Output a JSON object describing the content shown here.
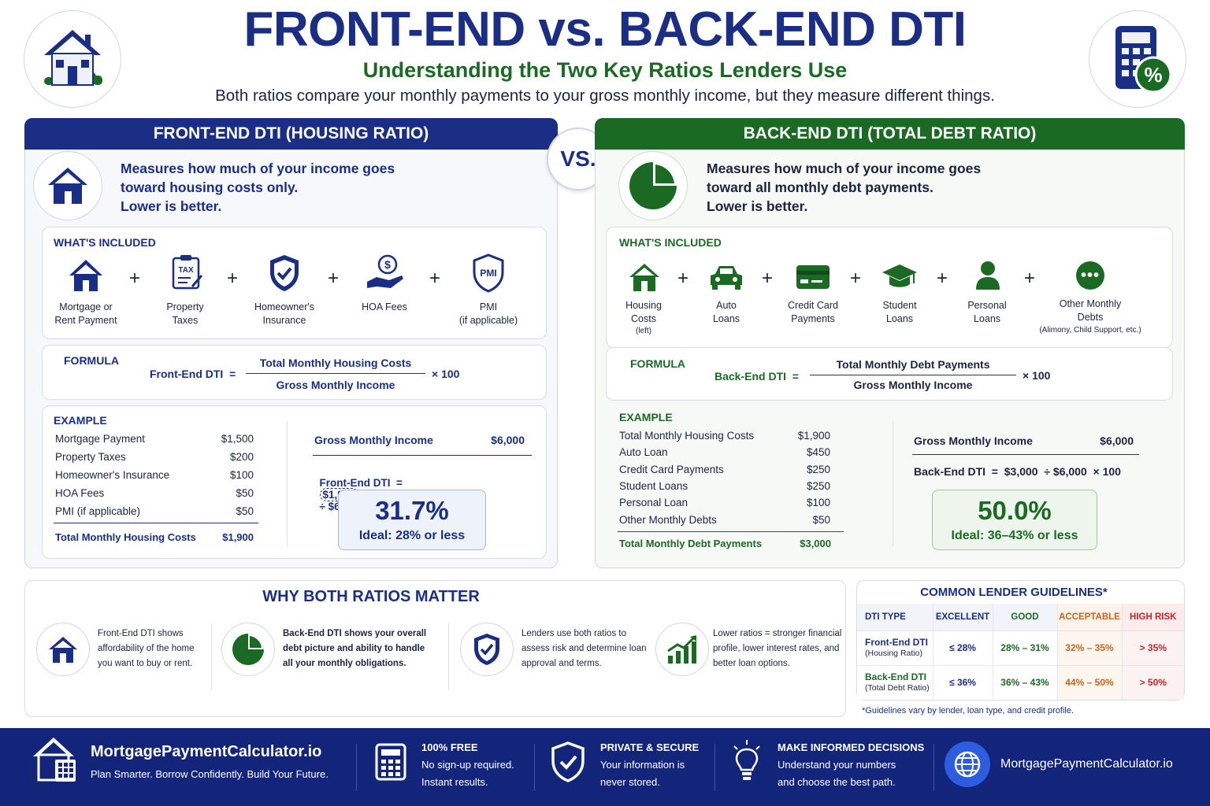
{
  "title": "FRONT-END vs. BACK-END DTI",
  "subtitle": "Understanding the Two Key Ratios Lenders Use",
  "description": "Both ratios compare your monthly payments to your gross monthly income, but they measure different things.",
  "vs": "VS.",
  "front": {
    "header": "FRONT-END DTI (HOUSING RATIO)",
    "intro": [
      "Measures how much of your income goes",
      "toward housing costs only.",
      "Lower is better."
    ],
    "included_title": "WHAT'S INCLUDED",
    "items": [
      {
        "l1": "Mortgage or",
        "l2": "Rent Payment",
        "icon": "house-icon"
      },
      {
        "l1": "Property",
        "l2": "Taxes",
        "icon": "tax-icon",
        "badge": "TAX"
      },
      {
        "l1": "Homeowner's",
        "l2": "Insurance",
        "icon": "shield-icon"
      },
      {
        "l1": "HOA Fees",
        "l2": "",
        "icon": "hand-dollar-icon"
      },
      {
        "l1": "PMI",
        "l2": "(if applicable)",
        "icon": "pmi-shield-icon",
        "badge": "PMI"
      }
    ],
    "formula_title": "FORMULA",
    "formula_lhs": "Front-End DTI  =",
    "formula_num": "Total Monthly Housing Costs",
    "formula_den": "Gross Monthly Income",
    "formula_mult": "× 100",
    "example_title": "EXAMPLE",
    "rows": [
      {
        "label": "Mortgage Payment",
        "value": "$1,500"
      },
      {
        "label": "Property Taxes",
        "value": "$200"
      },
      {
        "label": "Homeowner's Insurance",
        "value": "$100"
      },
      {
        "label": "HOA Fees",
        "value": "$50"
      },
      {
        "label": "PMI (if applicable)",
        "value": "$50"
      }
    ],
    "total_label": "Total Monthly Housing Costs",
    "total_value": "$1,900",
    "income_label": "Gross Monthly Income",
    "income_value": "$6,000",
    "calc_lhs": "Front-End DTI  =",
    "calc_num": "$1,900",
    "calc_rest": "÷ $6,000  × 100",
    "result": "31.7%",
    "ideal": "Ideal: 28% or less"
  },
  "back": {
    "header": "BACK-END DTI (TOTAL DEBT RATIO)",
    "intro": [
      "Measures how much of your income goes",
      "toward all monthly debt payments.",
      "Lower is better."
    ],
    "included_title": "WHAT'S INCLUDED",
    "items": [
      {
        "l1": "Housing",
        "l2": "Costs",
        "l3": "(left)",
        "icon": "house-icon"
      },
      {
        "l1": "Auto",
        "l2": "Loans",
        "icon": "car-icon"
      },
      {
        "l1": "Credit Card",
        "l2": "Payments",
        "icon": "credit-card-icon"
      },
      {
        "l1": "Student",
        "l2": "Loans",
        "icon": "graduation-cap-icon"
      },
      {
        "l1": "Personal",
        "l2": "Loans",
        "icon": "person-icon"
      },
      {
        "l1": "Other Monthly",
        "l2": "Debts",
        "l3": "(Alimony, Child Support, etc.)",
        "icon": "more-icon"
      }
    ],
    "formula_title": "FORMULA",
    "formula_lhs": "Back-End DTI  =",
    "formula_num": "Total Monthly Debt Payments",
    "formula_den": "Gross Monthly Income",
    "formula_mult": "× 100",
    "example_title": "EXAMPLE",
    "rows": [
      {
        "label": "Total Monthly Housing Costs",
        "value": "$1,900"
      },
      {
        "label": "Auto Loan",
        "value": "$450"
      },
      {
        "label": "Credit Card Payments",
        "value": "$250"
      },
      {
        "label": "Student Loans",
        "value": "$250"
      },
      {
        "label": "Personal Loan",
        "value": "$100"
      },
      {
        "label": "Other Monthly Debts",
        "value": "$50"
      }
    ],
    "total_label": "Total Monthly Debt Payments",
    "total_value": "$3,000",
    "income_label": "Gross Monthly Income",
    "income_value": "$6,000",
    "calc": "Back-End DTI  =  $3,000  ÷ $6,000  × 100",
    "result": "50.0%",
    "ideal": "Ideal: 36–43% or less"
  },
  "why": {
    "title": "WHY BOTH RATIOS MATTER",
    "items": [
      {
        "icon": "house-icon",
        "lines": [
          "Front-End DTI shows",
          "affordability of the home",
          "you want to buy or rent."
        ]
      },
      {
        "icon": "pie-chart-icon",
        "lines": [
          "Back-End DTI shows your overall",
          "debt picture and ability to handle",
          "all your monthly obligations."
        ]
      },
      {
        "icon": "shield-check-icon",
        "lines": [
          "Lenders use both ratios to",
          "assess risk and determine loan",
          "approval and terms."
        ]
      },
      {
        "icon": "growth-chart-icon",
        "lines": [
          "Lower ratios = stronger financial",
          "profile, lower interest rates, and",
          "better loan options."
        ]
      }
    ]
  },
  "guidelines": {
    "title": "COMMON LENDER GUIDELINES*",
    "headers": [
      "DTI TYPE",
      "EXCELLENT",
      "GOOD",
      "ACCEPTABLE",
      "HIGH RISK"
    ],
    "rows": [
      {
        "name": "Front-End DTI",
        "sub": "(Housing Ratio)",
        "values": [
          "≤ 28%",
          "28% – 31%",
          "32% – 35%",
          "> 35%"
        ]
      },
      {
        "name": "Back-End DTI",
        "sub": "(Total Debt Ratio)",
        "values": [
          "≤ 36%",
          "36% – 43%",
          "44% – 50%",
          "> 50%"
        ]
      }
    ],
    "note": "*Guidelines vary by lender, loan type, and credit profile.",
    "colors": {
      "excellent": "#1a2e85",
      "good": "#1b6a24",
      "acceptable": "#c8651a",
      "high": "#c8242a"
    }
  },
  "footer": {
    "brand": "MortgagePaymentCalculator.io",
    "tagline": "Plan Smarter. Borrow Confidently. Build Your Future.",
    "features": [
      {
        "icon": "calculator-icon",
        "title": "100% FREE",
        "l1": "No sign-up required.",
        "l2": "Instant results."
      },
      {
        "icon": "shield-check-icon",
        "title": "PRIVATE & SECURE",
        "l1": "Your information is",
        "l2": "never stored."
      },
      {
        "icon": "lightbulb-icon",
        "title": "MAKE INFORMED DECISIONS",
        "l1": "Understand your numbers",
        "l2": "and choose the best path."
      }
    ],
    "site": "MortgagePaymentCalculator.io"
  },
  "colors": {
    "navy": "#1a2e85",
    "green": "#1b6a24",
    "footer_bg": "#13257a"
  }
}
